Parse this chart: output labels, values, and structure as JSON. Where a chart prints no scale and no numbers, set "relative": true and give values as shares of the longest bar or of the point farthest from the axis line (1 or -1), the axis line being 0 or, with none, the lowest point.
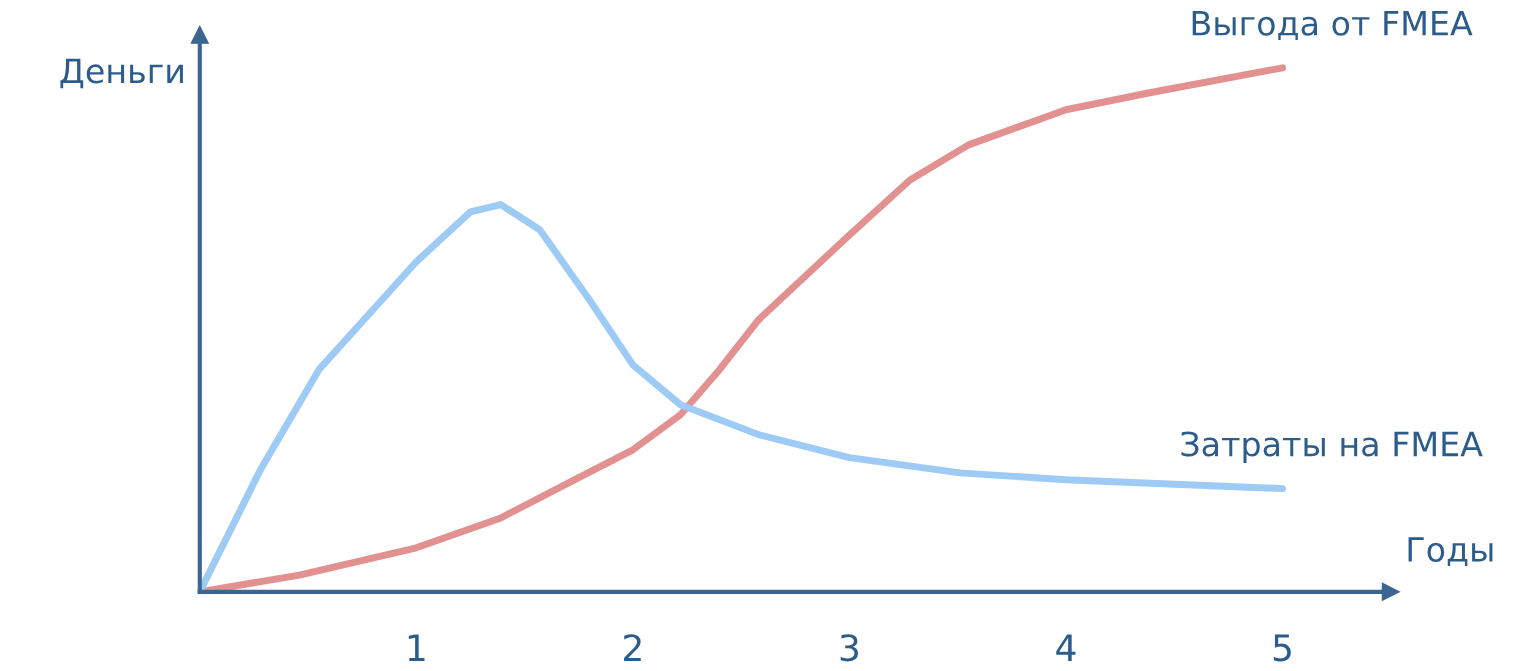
{
  "chart_data": {
    "type": "line",
    "relative": true,
    "xlabel": "Годы",
    "ylabel": "Деньги",
    "xlim": [
      0,
      5.5
    ],
    "xticks": [
      1,
      2,
      3,
      4,
      5
    ],
    "grid": false,
    "legend": false,
    "marker": "none",
    "line_style": "solid",
    "series": [
      {
        "name": "Выгода от FMEA",
        "color": "#e39090",
        "x": [
          0,
          0.46,
          1,
          1.39,
          1.75,
          2,
          2.22,
          2.4,
          2.58,
          3,
          3.28,
          3.55,
          4,
          4.38,
          5
        ],
        "values": [
          0,
          0.032,
          0.084,
          0.141,
          0.218,
          0.271,
          0.338,
          0.424,
          0.519,
          0.681,
          0.786,
          0.853,
          0.92,
          0.952,
          1.0
        ]
      },
      {
        "name": "Затраты на FMEA",
        "color": "#9dcbf5",
        "x": [
          0,
          0.28,
          0.55,
          1,
          1.25,
          1.39,
          1.57,
          1.8,
          2,
          2.22,
          2.58,
          3,
          3.51,
          4,
          5
        ],
        "values": [
          0,
          0.233,
          0.424,
          0.63,
          0.725,
          0.739,
          0.691,
          0.557,
          0.433,
          0.357,
          0.3,
          0.256,
          0.227,
          0.214,
          0.197
        ]
      }
    ]
  }
}
